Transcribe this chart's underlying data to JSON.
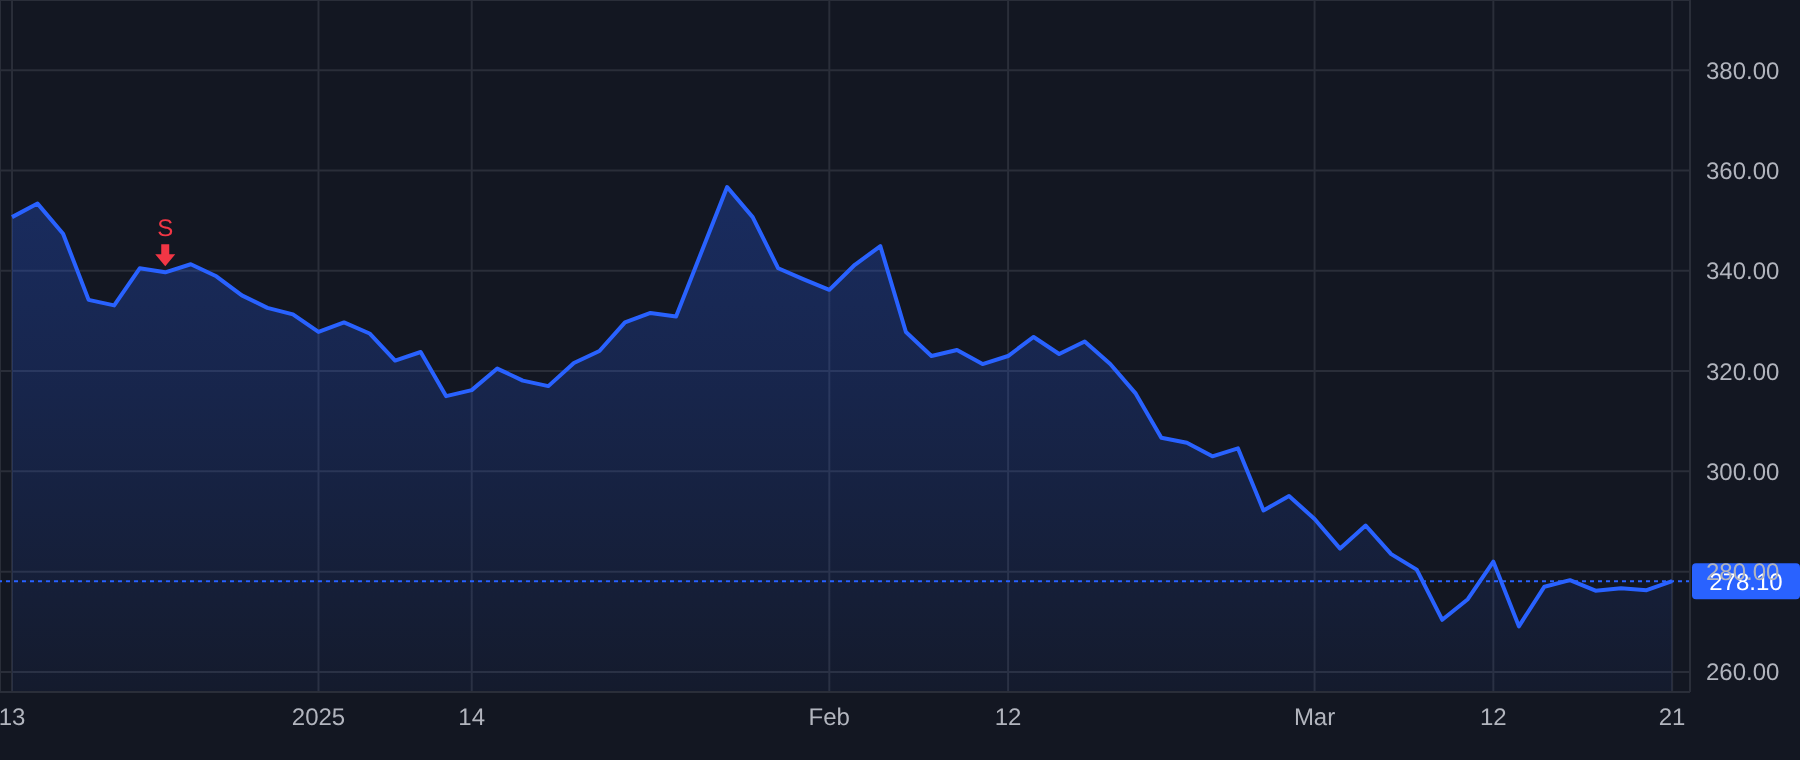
{
  "chart_data": {
    "type": "area",
    "categories": [
      "13",
      null,
      null,
      null,
      null,
      null,
      null,
      null,
      null,
      null,
      null,
      null,
      "2025",
      null,
      null,
      null,
      null,
      null,
      "14",
      null,
      null,
      null,
      null,
      null,
      null,
      null,
      null,
      null,
      null,
      null,
      null,
      null,
      "Feb",
      null,
      null,
      null,
      null,
      null,
      null,
      "12",
      null,
      null,
      null,
      null,
      null,
      null,
      null,
      null,
      null,
      null,
      null,
      "Mar",
      null,
      null,
      null,
      null,
      null,
      null,
      "12",
      null,
      null,
      null,
      null,
      null,
      null,
      "21"
    ],
    "series": [
      {
        "color": "#2962ff",
        "values": [
          350.7,
          353.4,
          347.4,
          334.2,
          333.1,
          340.5,
          339.7,
          341.3,
          338.9,
          335.1,
          332.6,
          331.3,
          327.8,
          329.7,
          327.5,
          322.1,
          323.8,
          315.0,
          316.2,
          320.5,
          318.1,
          317.0,
          321.6,
          324.0,
          329.7,
          331.6,
          330.9,
          343.8,
          356.7,
          350.7,
          340.5,
          338.3,
          336.2,
          341.2,
          344.9,
          327.8,
          323.0,
          324.2,
          321.4,
          323.0,
          326.8,
          323.4,
          325.9,
          321.4,
          315.5,
          306.7,
          305.7,
          303.0,
          304.6,
          292.2,
          295.1,
          290.5,
          284.6,
          289.2,
          283.5,
          280.4,
          270.4,
          274.5,
          282.0,
          269.1,
          277.0,
          278.3,
          276.2,
          276.7,
          276.3,
          278.1
        ]
      }
    ],
    "ylim": [
      256,
      394
    ],
    "yticks": [
      {
        "value": 260,
        "label": "260.00"
      },
      {
        "value": 280,
        "label": "280.00"
      },
      {
        "value": 300,
        "label": "300.00"
      },
      {
        "value": 320,
        "label": "320.00"
      },
      {
        "value": 340,
        "label": "340.00"
      },
      {
        "value": 360,
        "label": "360.00"
      },
      {
        "value": 380,
        "label": "380.00"
      }
    ],
    "grid": true,
    "ref_lines": [
      {
        "axis": "y",
        "value": 278.1,
        "label": "278.10",
        "color": "#2962ff",
        "line_style": "dotted"
      }
    ],
    "annotations": [
      {
        "text": "S",
        "y": 339.7
      }
    ]
  }
}
